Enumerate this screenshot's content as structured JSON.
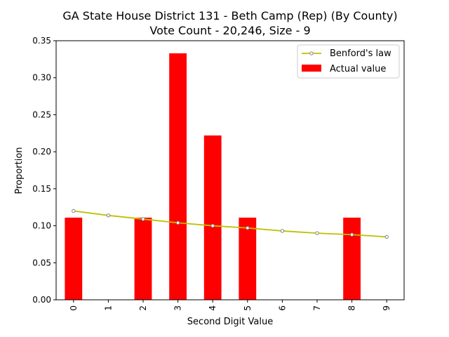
{
  "chart_data": {
    "type": "bar",
    "title": "GA State House District 131 - Beth Camp (Rep) (By County)",
    "subtitle": "Vote Count - 20,246, Size - 9",
    "xlabel": "Second Digit Value",
    "ylabel": "Proportion",
    "categories": [
      "0",
      "1",
      "2",
      "3",
      "4",
      "5",
      "6",
      "7",
      "8",
      "9"
    ],
    "ylim": [
      0,
      0.35
    ],
    "yticks": [
      "0.00",
      "0.05",
      "0.10",
      "0.15",
      "0.20",
      "0.25",
      "0.30",
      "0.35"
    ],
    "grid": false,
    "legend_position": "top-right",
    "series": [
      {
        "name": "Actual value",
        "kind": "bar",
        "color": "#ff0000",
        "values": [
          0.111,
          0.0,
          0.111,
          0.333,
          0.222,
          0.111,
          0.0,
          0.0,
          0.111,
          0.0
        ]
      },
      {
        "name": "Benford's law",
        "kind": "line",
        "color": "#bfbf00",
        "marker_color": "#808080",
        "values": [
          0.12,
          0.114,
          0.109,
          0.104,
          0.1,
          0.097,
          0.093,
          0.09,
          0.088,
          0.085
        ]
      }
    ]
  }
}
